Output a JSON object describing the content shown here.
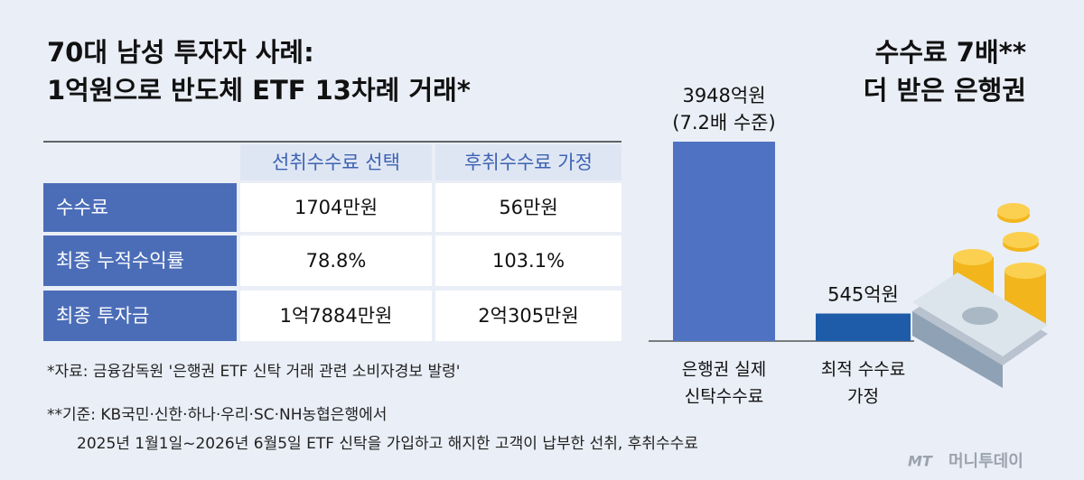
{
  "table_title": [
    "70대 남성 투자자 사례:",
    "1억원으로 반도체 ETF 13차례 거래*"
  ],
  "table": {
    "columns": [
      "선취수수료 선택",
      "후취수수료 가정"
    ],
    "rows": [
      [
        "수수료",
        "1704만원",
        "56만원"
      ],
      [
        "최종 누적수익률",
        "78.8%",
        "103.1%"
      ],
      [
        "최종 투자금",
        "1억7884만원",
        "2억305만원"
      ]
    ]
  },
  "footnotes": [
    "*자료: 금융감독원 '은행권 ETF 신탁 거래 관련 소비자경보 발령'",
    "**기준: KB국민·신한·하나·우리·SC·NH농협은행에서",
    "2025년 1월1일~2026년 6월5일 ETF 신탁을 가입하고 해지한 고객이 납부한 선취, 후취수수료"
  ],
  "chart_data": {
    "type": "bar",
    "title": [
      "수수료 7배**",
      "더 받은 은행권"
    ],
    "categories": [
      [
        "은행권 실제",
        "신탁수수료"
      ],
      [
        "최적 수수료",
        "가정"
      ]
    ],
    "values": [
      3948,
      545
    ],
    "value_labels": [
      [
        "3948억원",
        "(7.2배 수준)"
      ],
      [
        "545억원"
      ]
    ],
    "colors": [
      "#4f73c2",
      "#1e5ca9"
    ]
  },
  "logo": [
    "MT",
    "머니투데이"
  ]
}
